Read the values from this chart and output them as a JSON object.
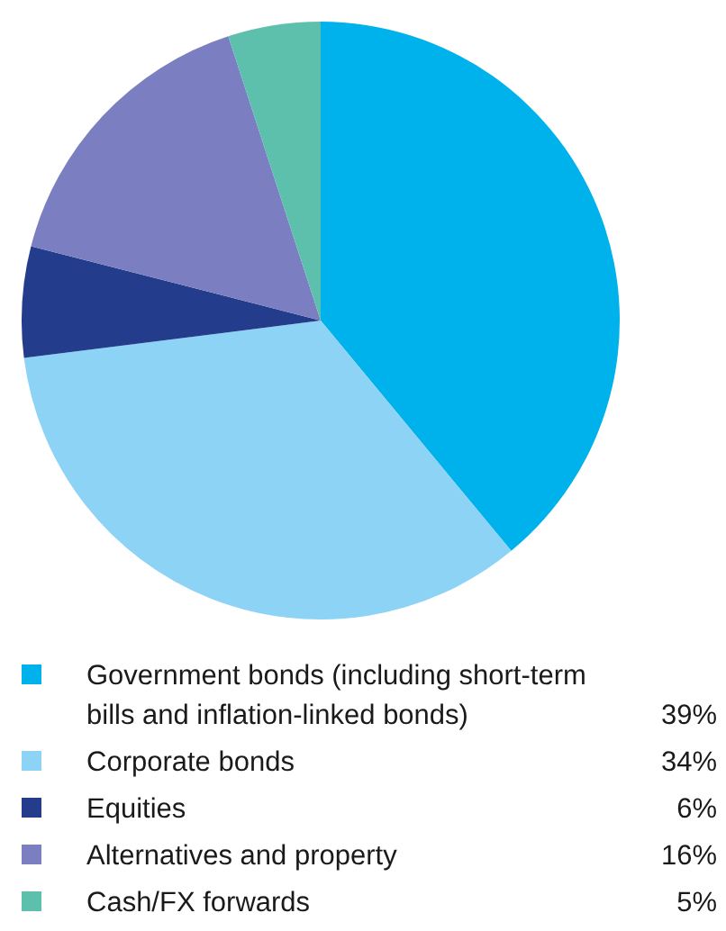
{
  "chart_data": {
    "type": "pie",
    "categories": [
      "Government bonds (including short-term bills and inflation-linked bonds)",
      "Corporate bonds",
      "Equities",
      "Alternatives and property",
      "Cash/FX forwards"
    ],
    "values": [
      39,
      34,
      6,
      16,
      5
    ],
    "colors": [
      "#00b2eb",
      "#8dd3f5",
      "#233c8c",
      "#7b7fc1",
      "#5cc0ad"
    ],
    "value_labels": [
      "39%",
      "34%",
      "6%",
      "16%",
      "5%"
    ],
    "legend": "bottom"
  }
}
